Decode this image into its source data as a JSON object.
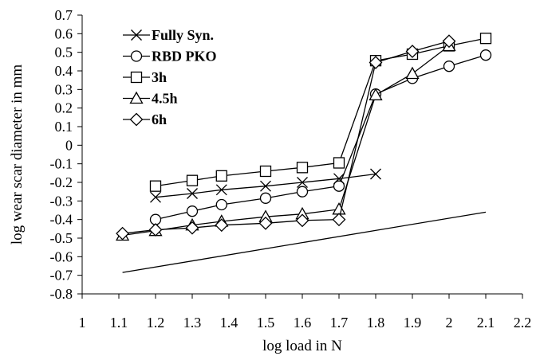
{
  "chart_data": {
    "type": "line",
    "title": "",
    "xlabel": "log load in N",
    "ylabel": "log wear scar diameter in mm",
    "xlim": [
      1,
      2.2
    ],
    "ylim": [
      -0.8,
      0.7
    ],
    "xticks": [
      "1",
      "1.1",
      "1.2",
      "1.3",
      "1.4",
      "1.5",
      "1.6",
      "1.7",
      "1.8",
      "1.9",
      "2",
      "2.1",
      "2.2"
    ],
    "yticks": [
      "0.7",
      "0.6",
      "0.5",
      "0.4",
      "0.3",
      "0.2",
      "0.1",
      "0",
      "-0.1",
      "-0.2",
      "-0.3",
      "-0.4",
      "-0.5",
      "-0.6",
      "-0.7",
      "-0.8"
    ],
    "grid": false,
    "legend_position": "top-left",
    "series": [
      {
        "name": "Fully Syn.",
        "marker": "x",
        "x": [
          1.2,
          1.3,
          1.38,
          1.5,
          1.6,
          1.7,
          1.8
        ],
        "y": [
          -0.28,
          -0.26,
          -0.24,
          -0.22,
          -0.2,
          -0.18,
          -0.155
        ]
      },
      {
        "name": "RBD PKO",
        "marker": "circle",
        "x": [
          1.2,
          1.3,
          1.38,
          1.5,
          1.6,
          1.7,
          1.8,
          1.9,
          2.0,
          2.1
        ],
        "y": [
          -0.4,
          -0.355,
          -0.32,
          -0.285,
          -0.25,
          -0.22,
          0.275,
          0.36,
          0.425,
          0.485
        ]
      },
      {
        "name": "3h",
        "marker": "square",
        "x": [
          1.2,
          1.3,
          1.38,
          1.5,
          1.6,
          1.7,
          1.8,
          1.9,
          2.0,
          2.1
        ],
        "y": [
          -0.22,
          -0.19,
          -0.165,
          -0.14,
          -0.12,
          -0.095,
          0.455,
          0.49,
          0.535,
          0.575
        ]
      },
      {
        "name": "4.5h",
        "marker": "triangle",
        "x": [
          1.11,
          1.2,
          1.3,
          1.38,
          1.5,
          1.6,
          1.7,
          1.8,
          1.9,
          2.0
        ],
        "y": [
          -0.485,
          -0.46,
          -0.43,
          -0.41,
          -0.385,
          -0.37,
          -0.345,
          0.27,
          0.385,
          0.535
        ]
      },
      {
        "name": "6h",
        "marker": "diamond",
        "x": [
          1.11,
          1.2,
          1.3,
          1.38,
          1.5,
          1.6,
          1.7,
          1.8,
          1.9,
          2.0
        ],
        "y": [
          -0.475,
          -0.455,
          -0.445,
          -0.43,
          -0.42,
          -0.405,
          -0.4,
          0.445,
          0.505,
          0.56
        ]
      },
      {
        "marker": "none",
        "x": [
          1.11,
          2.1
        ],
        "y": [
          -0.685,
          -0.36
        ]
      }
    ]
  }
}
